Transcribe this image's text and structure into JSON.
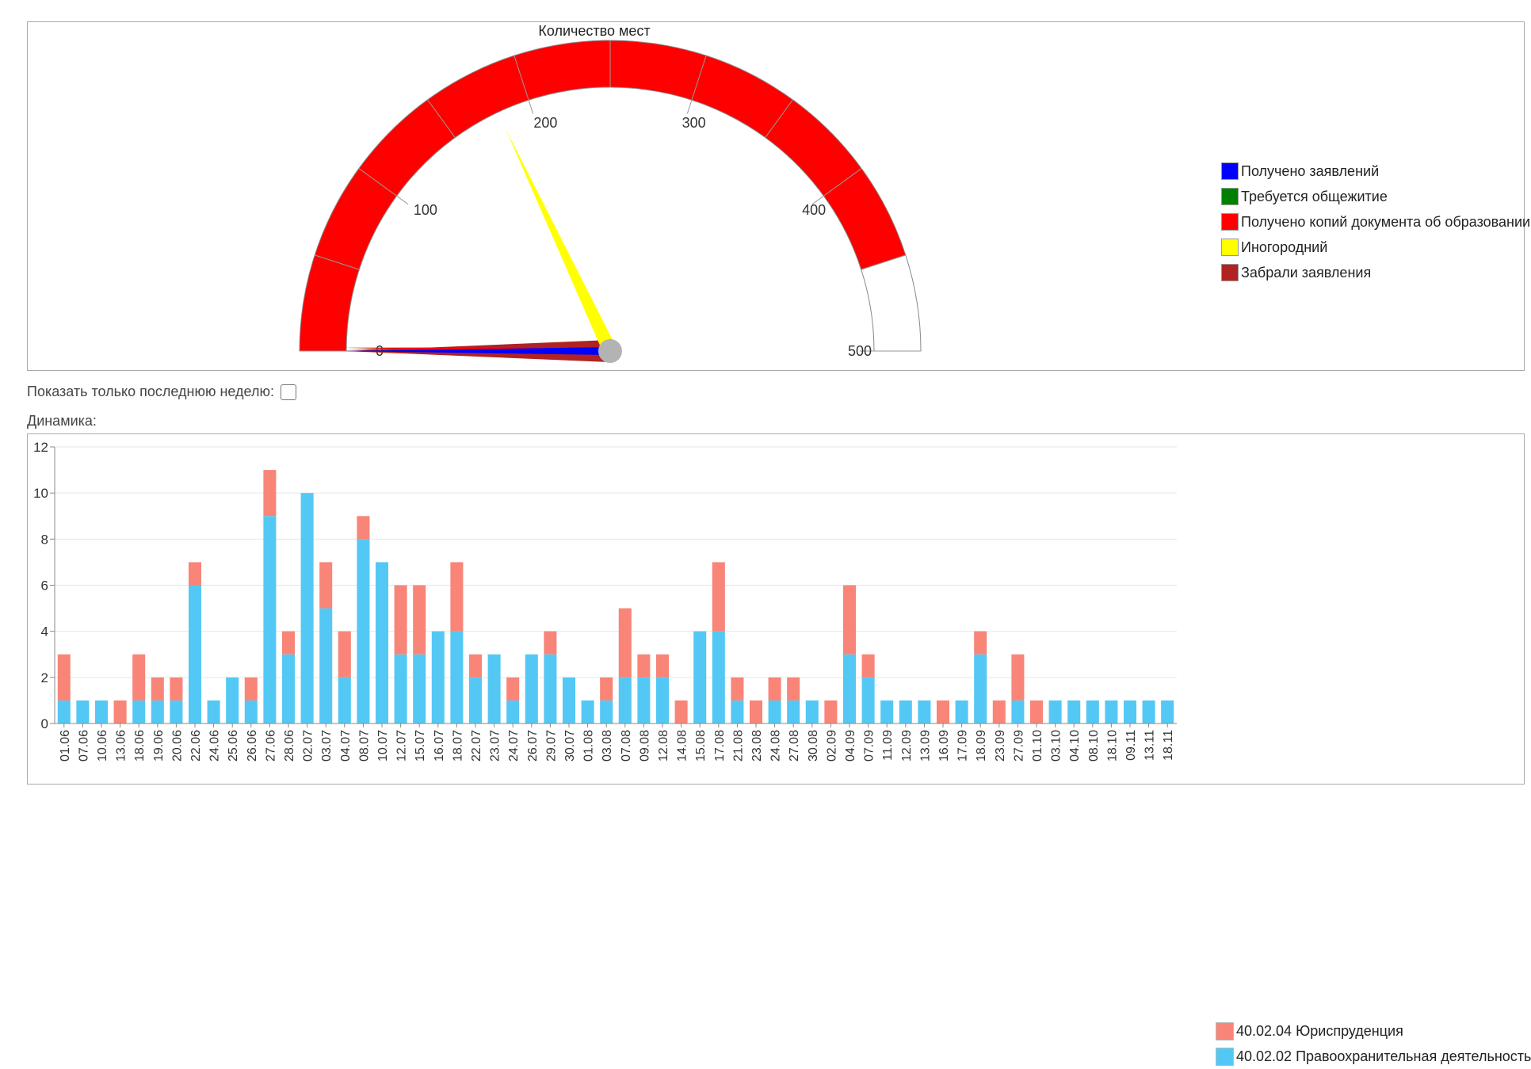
{
  "gauge": {
    "title": "Количество мест",
    "min": 0,
    "max": 500,
    "ticks": [
      0,
      100,
      200,
      300,
      400,
      500
    ],
    "band": {
      "from": 0,
      "to": 450,
      "color": "#ff0000"
    },
    "needles": [
      {
        "name": "Получено заявлений",
        "value": 0,
        "color": "#0000ff"
      },
      {
        "name": "Требуется общежитие",
        "value": 1,
        "color": "#008000"
      },
      {
        "name": "Получено копий документа об образовании",
        "value": 2,
        "color": "#ff0000"
      },
      {
        "name": "Иногородний",
        "value": 180,
        "color": "#ffff00"
      },
      {
        "name": "Забрали заявления",
        "value": 0,
        "color": "#b22222"
      }
    ],
    "legend": [
      {
        "label": "Получено заявлений",
        "color": "#0000ff"
      },
      {
        "label": "Требуется общежитие",
        "color": "#008000"
      },
      {
        "label": "Получено копий документа об образовании",
        "color": "#ff0000"
      },
      {
        "label": "Иногородний",
        "color": "#ffff00"
      },
      {
        "label": "Забрали заявления",
        "color": "#b22222"
      }
    ]
  },
  "controls": {
    "last_week_label": "Показать только последнюю неделю:",
    "dynamics_label": "Динамика:"
  },
  "chart_data": {
    "type": "bar",
    "stacked": true,
    "ylim": [
      0,
      12
    ],
    "yticks": [
      0,
      2,
      4,
      6,
      8,
      10,
      12
    ],
    "grid": true,
    "legend_position": "right",
    "categories": [
      "01.06",
      "07.06",
      "10.06",
      "13.06",
      "18.06",
      "19.06",
      "20.06",
      "22.06",
      "24.06",
      "25.06",
      "26.06",
      "27.06",
      "28.06",
      "02.07",
      "03.07",
      "04.07",
      "08.07",
      "10.07",
      "12.07",
      "15.07",
      "16.07",
      "18.07",
      "22.07",
      "23.07",
      "24.07",
      "26.07",
      "29.07",
      "30.07",
      "01.08",
      "03.08",
      "07.08",
      "09.08",
      "12.08",
      "14.08",
      "15.08",
      "17.08",
      "21.08",
      "23.08",
      "24.08",
      "27.08",
      "30.08",
      "02.09",
      "04.09",
      "07.09",
      "11.09",
      "12.09",
      "13.09",
      "16.09",
      "17.09",
      "18.09",
      "23.09",
      "27.09",
      "01.10",
      "03.10",
      "04.10",
      "08.10",
      "18.10",
      "09.11",
      "13.11",
      "18.11"
    ],
    "series": [
      {
        "name": "40.02.02 Правоохранительная деятельность",
        "color": "#54c8f5",
        "values": [
          1,
          1,
          1,
          0,
          1,
          1,
          1,
          6,
          1,
          2,
          1,
          9,
          3,
          10,
          5,
          2,
          8,
          7,
          3,
          3,
          4,
          4,
          2,
          3,
          1,
          3,
          3,
          2,
          1,
          1,
          2,
          2,
          2,
          0,
          4,
          4,
          1,
          0,
          1,
          1,
          1,
          0,
          3,
          2,
          1,
          1,
          1,
          0,
          1,
          3,
          0,
          1,
          0,
          1,
          1,
          1,
          1,
          1,
          1,
          1
        ]
      },
      {
        "name": "40.02.04 Юриспруденция",
        "color": "#f88578",
        "values": [
          2,
          0,
          0,
          1,
          2,
          1,
          1,
          1,
          0,
          0,
          1,
          2,
          1,
          0,
          2,
          2,
          1,
          0,
          3,
          3,
          0,
          3,
          1,
          0,
          1,
          0,
          1,
          0,
          0,
          1,
          3,
          1,
          1,
          1,
          0,
          3,
          1,
          1,
          1,
          1,
          0,
          1,
          3,
          1,
          0,
          0,
          0,
          1,
          0,
          1,
          1,
          2,
          1,
          0,
          0,
          0,
          0,
          0,
          0,
          0
        ]
      }
    ],
    "legend": [
      {
        "label": "40.02.04 Юриспруденция",
        "color": "#f88578"
      },
      {
        "label": "40.02.02 Правоохранительная деятельность",
        "color": "#54c8f5"
      }
    ]
  }
}
